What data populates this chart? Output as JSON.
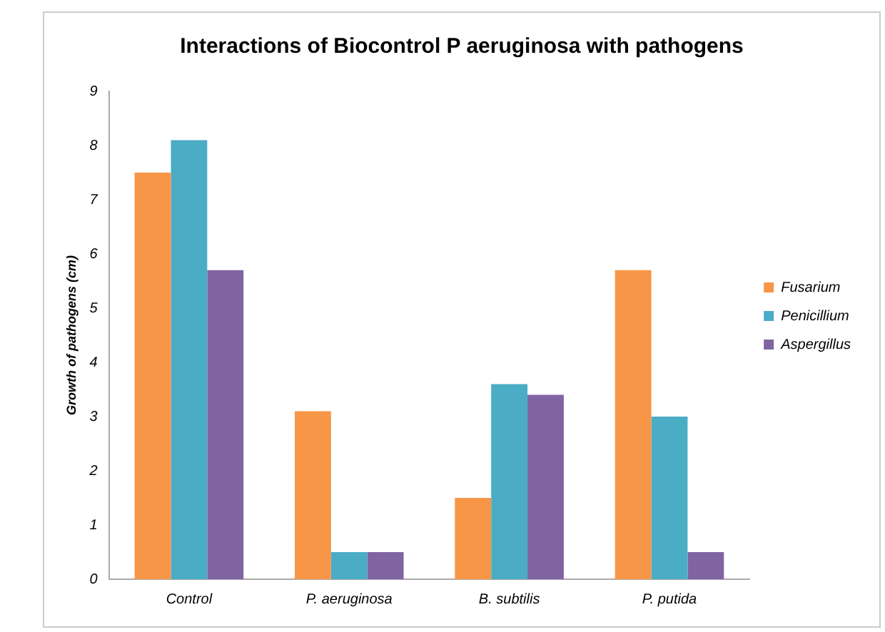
{
  "chart_data": {
    "type": "bar",
    "title": "Interactions of Biocontrol P aeruginosa with pathogens",
    "ylabel": "Growth of pathogens (cm)",
    "categories": [
      "Control",
      "P. aeruginosa",
      "B. subtilis",
      "P. putida"
    ],
    "series": [
      {
        "name": "Fusarium",
        "color": "#f79646",
        "values": [
          7.5,
          3.1,
          1.5,
          5.7
        ]
      },
      {
        "name": "Penicillium",
        "color": "#4bacc6",
        "values": [
          8.1,
          0.5,
          3.6,
          3.0
        ]
      },
      {
        "name": "Aspergillus",
        "color": "#8064a2",
        "values": [
          5.7,
          0.5,
          3.4,
          0.5
        ]
      }
    ],
    "ylim": [
      0,
      9
    ],
    "yticks": [
      0,
      1,
      2,
      3,
      4,
      5,
      6,
      7,
      8,
      9
    ],
    "grid": false,
    "legend": "right"
  }
}
